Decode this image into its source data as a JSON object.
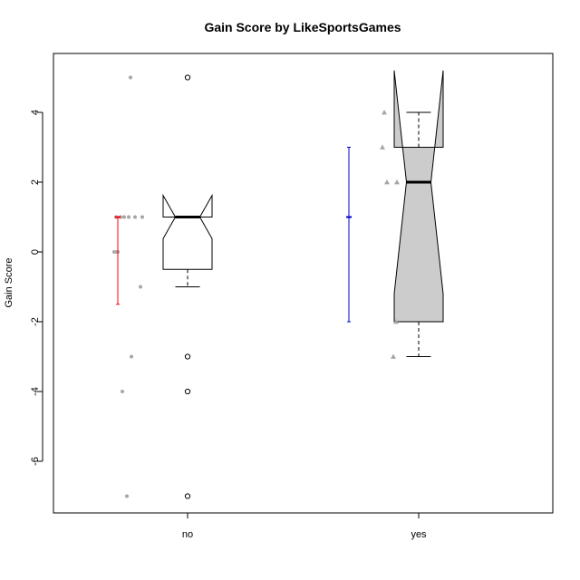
{
  "chart_data": {
    "type": "boxplot",
    "title": "Gain Score by LikeSportsGames",
    "ylabel": "Gain Score",
    "xlabel": "",
    "ylim": [
      -7.3,
      5.5
    ],
    "yticks": [
      -6,
      -4,
      -2,
      0,
      2,
      4
    ],
    "categories": [
      "no",
      "yes"
    ],
    "boxes": [
      {
        "category": "no",
        "fill": "#ffffff",
        "min": -1,
        "q1": -0.5,
        "median": 1,
        "q3": 1,
        "max": 1,
        "notch_low": 0.38,
        "notch_high": 1.62,
        "outliers": [
          5,
          -3,
          -4,
          -7
        ]
      },
      {
        "category": "yes",
        "fill": "#cccccc",
        "min": -3,
        "q1": -2,
        "median": 2,
        "q3": 3,
        "max": 4,
        "notch_low": -1.2,
        "notch_high": 5.2,
        "outliers": []
      }
    ],
    "points": [
      {
        "category": "no",
        "marker": "circle",
        "color": "#a6a6a6",
        "values": [
          [
            -0.72,
            -4
          ],
          [
            -0.67,
            -7
          ],
          [
            -0.62,
            -3
          ],
          [
            -0.63,
            5
          ],
          [
            -0.58,
            1
          ],
          [
            -0.65,
            1
          ],
          [
            -0.79,
            1
          ],
          [
            -0.74,
            1
          ],
          [
            -0.7,
            1
          ],
          [
            -0.77,
            0
          ],
          [
            -0.78,
            0
          ],
          [
            -0.81,
            0
          ],
          [
            -0.5,
            1
          ],
          [
            -0.52,
            -1
          ]
        ]
      },
      {
        "category": "yes",
        "marker": "triangle",
        "color": "#a6a6a6",
        "values": [
          [
            -0.38,
            4
          ],
          [
            -0.4,
            3
          ],
          [
            -0.35,
            2
          ],
          [
            -0.24,
            2
          ],
          [
            -0.25,
            -2
          ],
          [
            -0.28,
            -3
          ]
        ]
      }
    ],
    "error_bars": [
      {
        "category": "no",
        "center": 1,
        "low": -1.5,
        "high": 1,
        "color": "#ff0000"
      },
      {
        "category": "yes",
        "center": 1,
        "low": -2,
        "high": 3,
        "color": "#0000cd"
      }
    ]
  }
}
